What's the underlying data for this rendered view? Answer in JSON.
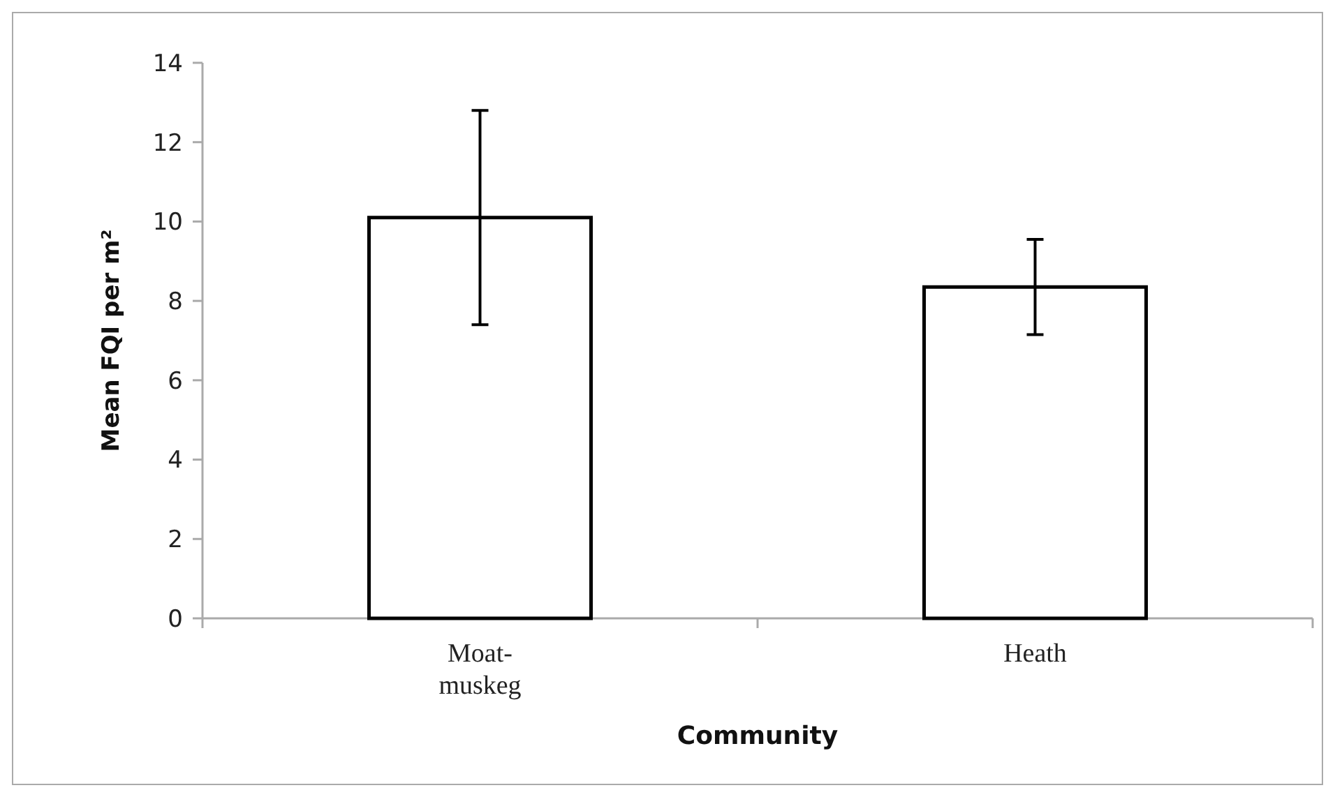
{
  "chart_data": {
    "type": "bar",
    "xlabel": "Community",
    "ylabel": "Mean FQI per m²",
    "categories": [
      "Moat-muskeg",
      "Heath"
    ],
    "values": [
      10.1,
      8.35
    ],
    "errors": [
      2.7,
      1.2
    ],
    "color": "#ffffff",
    "ylim": [
      0,
      14
    ],
    "yticks": [
      0,
      2,
      4,
      6,
      8,
      10,
      12,
      14
    ],
    "grid": false
  }
}
